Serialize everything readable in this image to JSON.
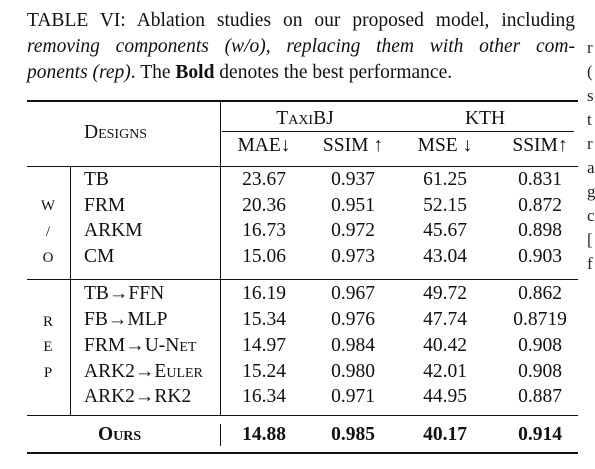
{
  "caption": {
    "label": "TABLE VI:",
    "line1_rest": " Ablation studies on our proposed model, including",
    "line2": "removing components (w/o), replacing them with other com-",
    "line3_italic": "ponents (rep)",
    "line3_mid": ". The ",
    "line3_bold": "Bold",
    "line3_end": " denotes the best performance."
  },
  "header": {
    "designs": "Designs",
    "taxibj": "TaxiBJ",
    "kth": "KTH",
    "columns": [
      "MAE↓",
      "SSIM ↑",
      "MSE ↓",
      "SSIM↑"
    ]
  },
  "groups": {
    "wo": [
      "W",
      "/",
      "O"
    ],
    "rep": [
      "R",
      "E",
      "P"
    ]
  },
  "rows_wo": [
    {
      "name": "TB",
      "values": [
        "23.67",
        "0.937",
        "61.25",
        "0.831"
      ]
    },
    {
      "name": "FRM",
      "values": [
        "20.36",
        "0.951",
        "52.15",
        "0.872"
      ]
    },
    {
      "name": "ARKM",
      "values": [
        "16.73",
        "0.972",
        "45.67",
        "0.898"
      ]
    },
    {
      "name": "CM",
      "values": [
        "15.06",
        "0.973",
        "43.04",
        "0.903"
      ]
    }
  ],
  "rows_rep": [
    {
      "name": "TB→FFN",
      "values": [
        "16.19",
        "0.967",
        "49.72",
        "0.862"
      ]
    },
    {
      "name": "FB→MLP",
      "values": [
        "15.34",
        "0.976",
        "47.74",
        "0.8719"
      ]
    },
    {
      "name_pre": "FRM→",
      "name_sc": "U-Net",
      "values": [
        "14.97",
        "0.984",
        "40.42",
        "0.908"
      ]
    },
    {
      "name_pre": "ARK2→",
      "name_sc": "Euler",
      "values": [
        "15.24",
        "0.980",
        "42.01",
        "0.908"
      ]
    },
    {
      "name": "ARK2→RK2",
      "values": [
        "16.34",
        "0.971",
        "44.95",
        "0.887"
      ]
    }
  ],
  "ours": {
    "name": "Ours",
    "values": [
      "14.88",
      "0.985",
      "40.17",
      "0.914"
    ]
  },
  "right_edge_chars": [
    "r",
    "(",
    "s",
    "t",
    "r",
    "a",
    "g",
    "c",
    "[",
    "f"
  ]
}
